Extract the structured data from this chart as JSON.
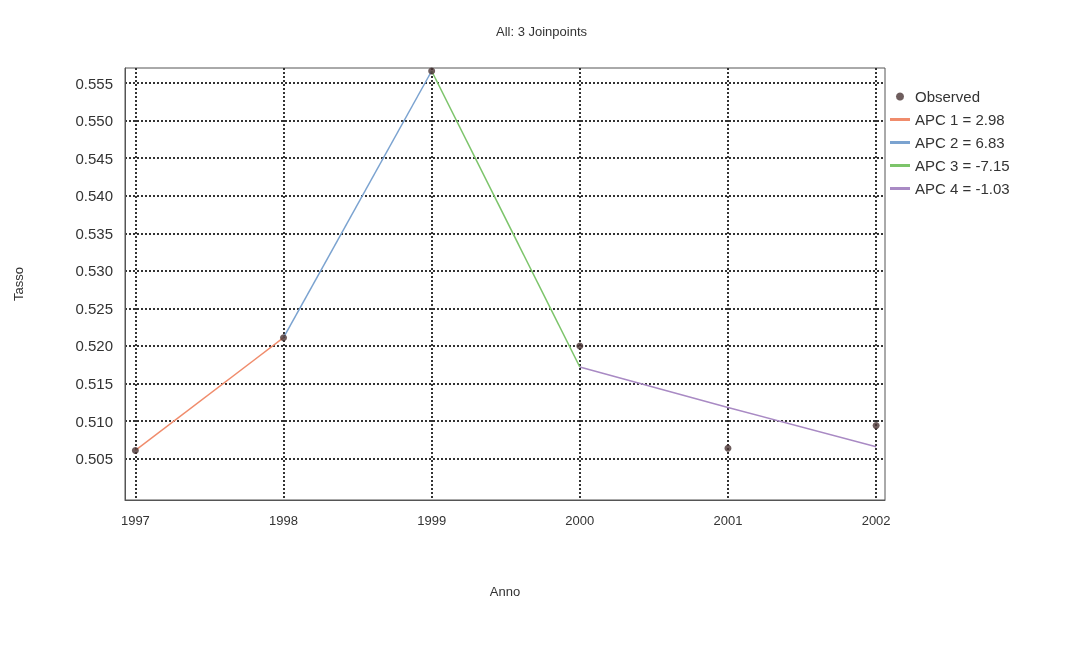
{
  "chart_data": {
    "type": "line",
    "title": "All: 3 Joinpoints",
    "xlabel": "Anno",
    "ylabel": "Tasso",
    "xlim": [
      1996.93,
      2002.06
    ],
    "xticks": [
      1997,
      1998,
      1999,
      2000,
      2001,
      2002
    ],
    "ylim": [
      0.4995,
      0.557
    ],
    "yticks": [
      0.505,
      {
        "value": 0.51,
        "label": "0.510"
      },
      0.515,
      {
        "value": 0.52,
        "label": "0.520"
      },
      0.525,
      {
        "value": 0.53,
        "label": "0.530"
      },
      0.535,
      {
        "value": 0.54,
        "label": "0.540"
      },
      0.545,
      {
        "value": 0.55,
        "label": "0.550"
      },
      0.555
    ],
    "grid": true,
    "legend": "top right",
    "series": [
      {
        "name": "Observed",
        "type": "scatter",
        "marker": "circle",
        "color": "#4a3434",
        "x": [
          1997,
          1998,
          1999,
          2000,
          2001,
          2002
        ],
        "values": [
          0.5061,
          0.5211,
          0.5566,
          0.52,
          0.5064,
          0.5094
        ]
      },
      {
        "name": "APC 1 = 2.98",
        "type": "line",
        "color": "#f08c6c",
        "x": [
          1997,
          1998
        ],
        "values": [
          0.5061,
          0.5211
        ]
      },
      {
        "name": "APC 2 = 6.83",
        "type": "line",
        "color": "#7ba3d0",
        "x": [
          1998,
          1999
        ],
        "values": [
          0.5211,
          0.5566
        ]
      },
      {
        "name": "APC 3 = -7.15",
        "color": "#7cc46a",
        "x": [
          1999,
          2000
        ],
        "values": [
          0.5566,
          0.5172
        ]
      },
      {
        "name": "APC 4 = -1.03",
        "color": "#a98ac4",
        "x": [
          2000,
          2001,
          2002
        ],
        "values": [
          0.5172,
          0.5118,
          0.5066
        ]
      }
    ]
  }
}
